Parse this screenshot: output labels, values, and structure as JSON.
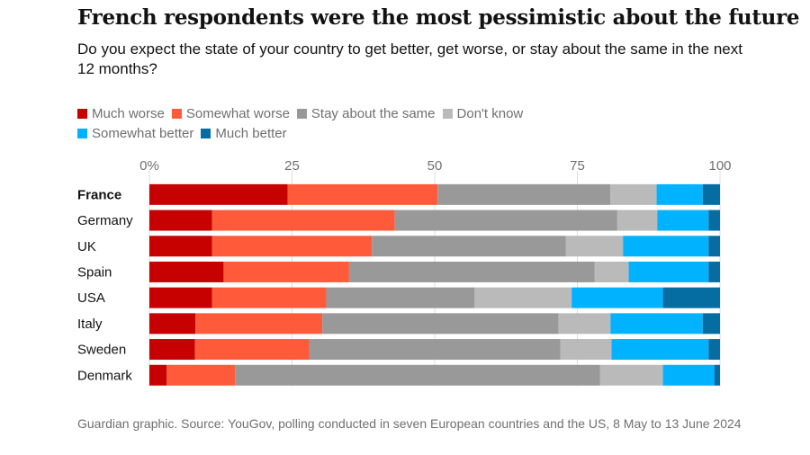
{
  "title": "French respondents were the most pessimistic about the future",
  "subtitle": "Do you expect the state of your country to get better, get worse, or stay about the same in the next 12 months?",
  "footer": "Guardian graphic. Source: YouGov, polling conducted in seven European countries and the US, 8 May to 13 June 2024",
  "chart_data": {
    "type": "bar",
    "orientation": "horizontal",
    "stacked": true,
    "categories": [
      "France",
      "Germany",
      "UK",
      "Spain",
      "USA",
      "Italy",
      "Sweden",
      "Denmark"
    ],
    "series": [
      {
        "name": "Much worse",
        "color": "#c70000",
        "values": [
          24,
          11,
          11,
          13,
          11,
          8,
          8,
          3
        ]
      },
      {
        "name": "Somewhat worse",
        "color": "#ff5b3a",
        "values": [
          26,
          32,
          28,
          22,
          20,
          22,
          20,
          12
        ]
      },
      {
        "name": "Stay about the same",
        "color": "#999999",
        "values": [
          30,
          39,
          34,
          43,
          26,
          41,
          44,
          64
        ]
      },
      {
        "name": "Don't know",
        "color": "#bababa",
        "values": [
          8,
          7,
          10,
          6,
          17,
          9,
          9,
          11
        ]
      },
      {
        "name": "Somewhat better",
        "color": "#00b2ff",
        "values": [
          8,
          9,
          15,
          14,
          16,
          16,
          17,
          9
        ]
      },
      {
        "name": "Much better",
        "color": "#056da1",
        "values": [
          3,
          2,
          2,
          2,
          10,
          3,
          2,
          1
        ]
      }
    ],
    "xlim": [
      0,
      100
    ],
    "xticks": [
      "0%",
      "25",
      "50",
      "75",
      "100"
    ],
    "grid": true,
    "legend_position": "top"
  }
}
